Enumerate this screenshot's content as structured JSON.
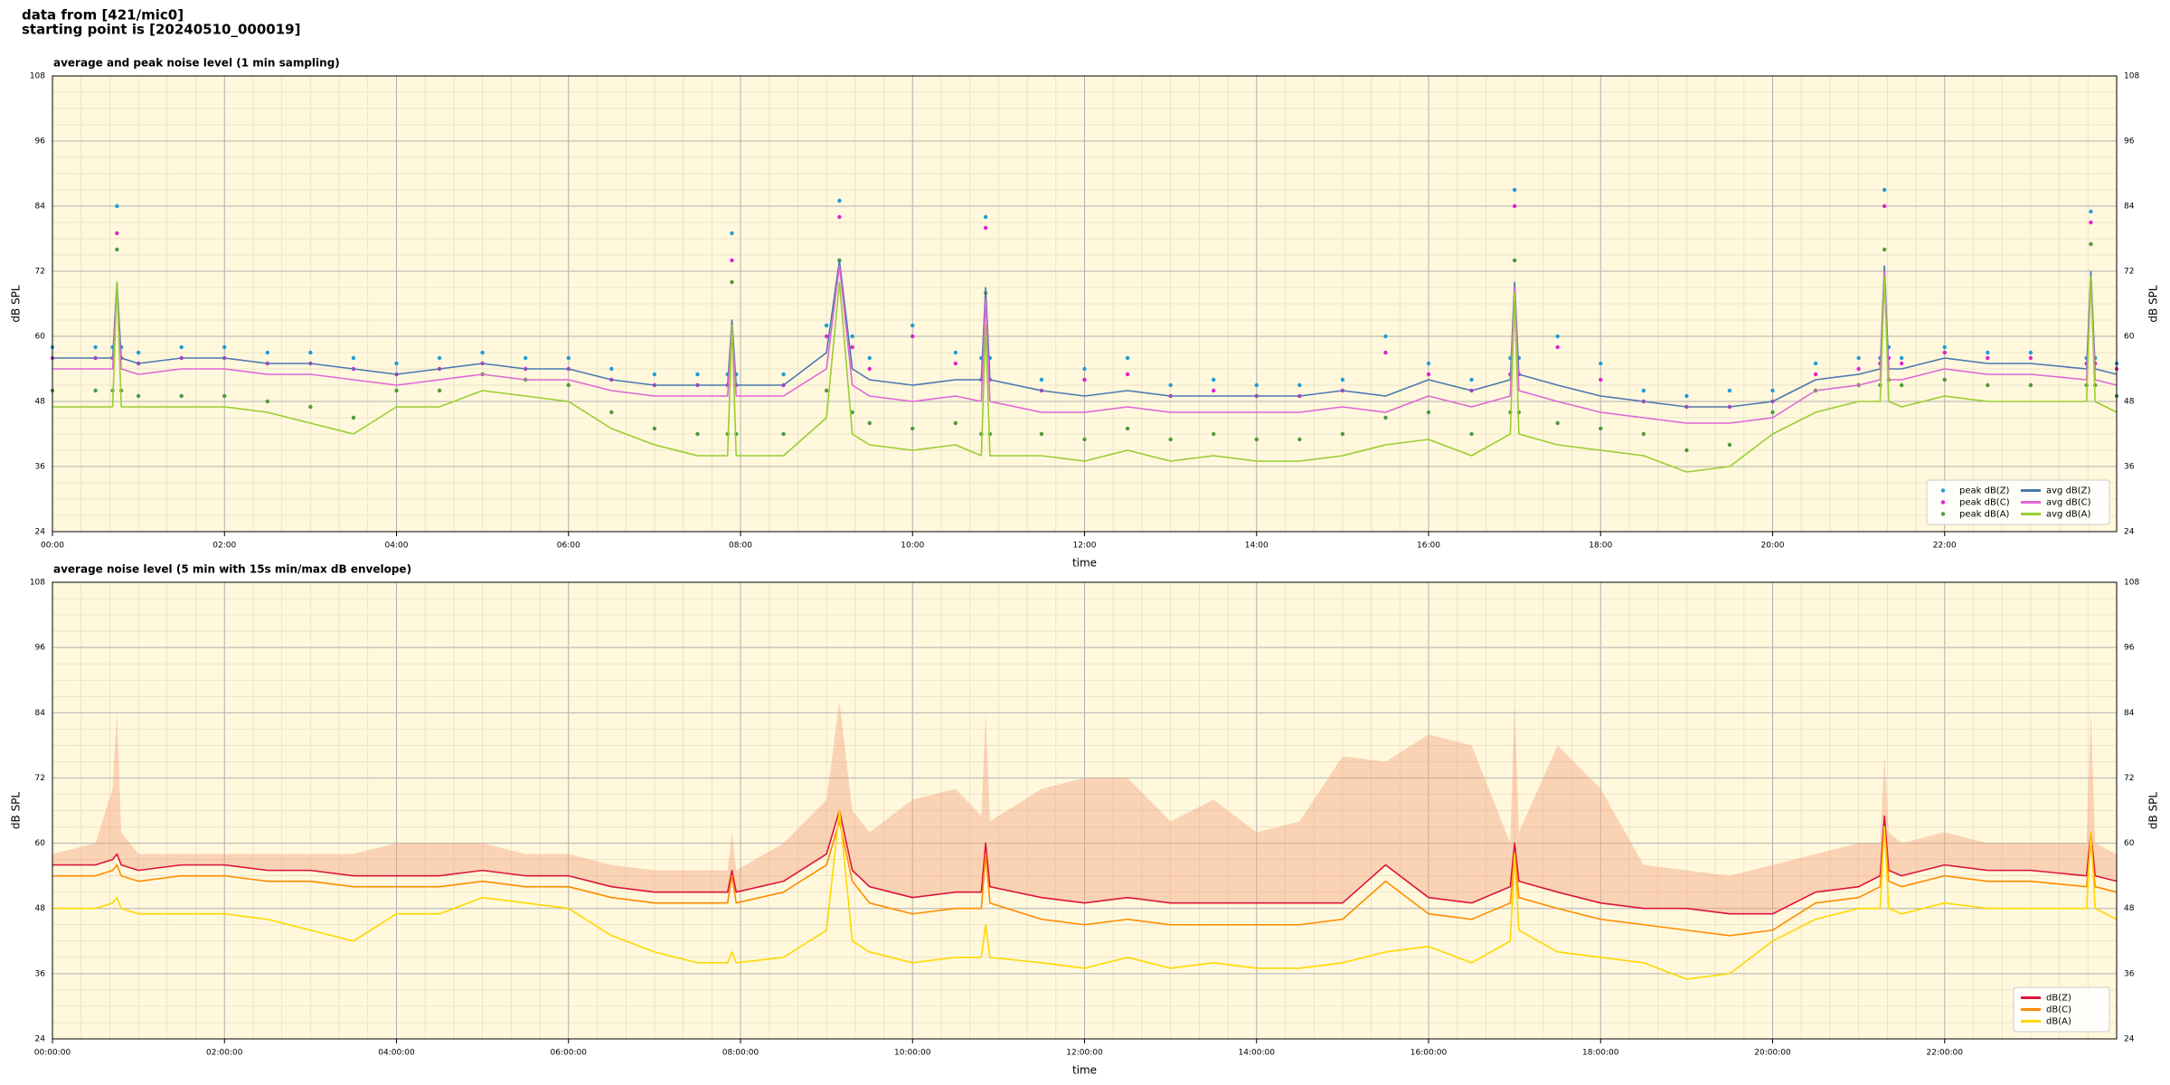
{
  "header": {
    "line1": "data from [421/mic0]",
    "line2": "starting point is [20240510_000019]"
  },
  "chart_data": [
    {
      "type": "line",
      "title": "average and peak noise level (1 min sampling)",
      "xlabel": "time",
      "ylabel": "dB SPL",
      "background": "#fff8dc",
      "grid": true,
      "legend": "lower right",
      "legend_columns": 2,
      "xlim": [
        0,
        24
      ],
      "ylim": [
        24,
        108
      ],
      "yticks": [
        24,
        36,
        48,
        60,
        72,
        84,
        96,
        108
      ],
      "xticks": [
        {
          "value": 0,
          "label": "00:00"
        },
        {
          "value": 2,
          "label": "02:00"
        },
        {
          "value": 4,
          "label": "04:00"
        },
        {
          "value": 6,
          "label": "06:00"
        },
        {
          "value": 8,
          "label": "08:00"
        },
        {
          "value": 10,
          "label": "10:00"
        },
        {
          "value": 12,
          "label": "12:00"
        },
        {
          "value": 14,
          "label": "14:00"
        },
        {
          "value": 16,
          "label": "16:00"
        },
        {
          "value": 18,
          "label": "18:00"
        },
        {
          "value": 20,
          "label": "20:00"
        },
        {
          "value": 22,
          "label": "22:00"
        }
      ],
      "x": [
        0,
        0.5,
        0.7,
        0.75,
        0.8,
        1,
        1.5,
        2,
        2.5,
        3,
        3.5,
        4,
        4.5,
        5,
        5.5,
        6,
        6.5,
        7,
        7.5,
        7.85,
        7.9,
        7.95,
        8.5,
        9,
        9.15,
        9.3,
        9.5,
        10,
        10.5,
        10.8,
        10.85,
        10.9,
        11.5,
        12,
        12.5,
        13,
        13.5,
        14,
        14.5,
        15,
        15.5,
        16,
        16.5,
        16.95,
        17,
        17.05,
        17.5,
        18,
        18.5,
        19,
        19.5,
        20,
        20.5,
        21,
        21.25,
        21.3,
        21.35,
        21.5,
        22,
        22.5,
        23,
        23.65,
        23.7,
        23.75,
        24
      ],
      "series": [
        {
          "name": "peak dB(Z)",
          "color": "#1f9bd8",
          "mode": "points",
          "values": [
            58,
            58,
            58,
            84,
            58,
            57,
            58,
            58,
            57,
            57,
            56,
            55,
            56,
            57,
            56,
            56,
            54,
            53,
            53,
            53,
            79,
            53,
            53,
            62,
            85,
            60,
            56,
            62,
            57,
            56,
            82,
            56,
            52,
            54,
            56,
            51,
            52,
            51,
            51,
            52,
            60,
            55,
            52,
            56,
            87,
            56,
            60,
            55,
            50,
            49,
            50,
            50,
            55,
            56,
            56,
            87,
            58,
            56,
            58,
            57,
            57,
            56,
            83,
            56,
            55
          ]
        },
        {
          "name": "peak dB(C)",
          "color": "#e020d0",
          "mode": "points",
          "values": [
            56,
            56,
            56,
            79,
            56,
            55,
            56,
            56,
            55,
            55,
            54,
            53,
            54,
            55,
            54,
            54,
            52,
            51,
            51,
            51,
            74,
            51,
            51,
            60,
            82,
            58,
            54,
            60,
            55,
            52,
            80,
            52,
            50,
            52,
            53,
            49,
            50,
            49,
            49,
            50,
            57,
            53,
            50,
            53,
            84,
            53,
            58,
            52,
            48,
            47,
            47,
            48,
            53,
            54,
            55,
            84,
            56,
            55,
            57,
            56,
            56,
            55,
            81,
            55,
            54
          ]
        },
        {
          "name": "peak dB(A)",
          "color": "#4c9a3a",
          "mode": "points",
          "values": [
            50,
            50,
            50,
            76,
            50,
            49,
            49,
            49,
            48,
            47,
            45,
            50,
            50,
            53,
            52,
            51,
            46,
            43,
            42,
            42,
            70,
            42,
            42,
            50,
            74,
            46,
            44,
            43,
            44,
            42,
            68,
            42,
            42,
            41,
            43,
            41,
            42,
            41,
            41,
            42,
            45,
            46,
            42,
            46,
            74,
            46,
            44,
            43,
            42,
            39,
            40,
            46,
            50,
            51,
            51,
            76,
            52,
            51,
            52,
            51,
            51,
            51,
            77,
            51,
            49
          ]
        },
        {
          "name": "avg dB(Z)",
          "color": "#4a78b0",
          "mode": "line",
          "values": [
            56,
            56,
            56,
            70,
            56,
            55,
            56,
            56,
            55,
            55,
            54,
            53,
            54,
            55,
            54,
            54,
            52,
            51,
            51,
            51,
            63,
            51,
            51,
            57,
            74,
            54,
            52,
            51,
            52,
            52,
            69,
            52,
            50,
            49,
            50,
            49,
            49,
            49,
            49,
            50,
            49,
            52,
            50,
            52,
            70,
            53,
            51,
            49,
            48,
            47,
            47,
            48,
            52,
            53,
            54,
            73,
            54,
            54,
            56,
            55,
            55,
            54,
            72,
            54,
            53
          ]
        },
        {
          "name": "avg dB(C)",
          "color": "#e066d6",
          "mode": "line",
          "values": [
            54,
            54,
            54,
            69,
            54,
            53,
            54,
            54,
            53,
            53,
            52,
            51,
            52,
            53,
            52,
            52,
            50,
            49,
            49,
            49,
            62,
            49,
            49,
            54,
            73,
            51,
            49,
            48,
            49,
            48,
            67,
            48,
            46,
            46,
            47,
            46,
            46,
            46,
            46,
            47,
            46,
            49,
            47,
            49,
            69,
            50,
            48,
            46,
            45,
            44,
            44,
            45,
            50,
            51,
            52,
            72,
            52,
            52,
            54,
            53,
            53,
            52,
            71,
            52,
            51
          ]
        },
        {
          "name": "avg dB(A)",
          "color": "#9acd32",
          "mode": "line",
          "values": [
            47,
            47,
            47,
            70,
            47,
            47,
            47,
            47,
            46,
            44,
            42,
            47,
            47,
            50,
            49,
            48,
            43,
            40,
            38,
            38,
            62,
            38,
            38,
            45,
            70,
            42,
            40,
            39,
            40,
            38,
            62,
            38,
            38,
            37,
            39,
            37,
            38,
            37,
            37,
            38,
            40,
            41,
            38,
            42,
            68,
            42,
            40,
            39,
            38,
            35,
            36,
            42,
            46,
            48,
            48,
            71,
            48,
            47,
            49,
            48,
            48,
            48,
            71,
            48,
            46
          ]
        }
      ]
    },
    {
      "type": "line",
      "title": "average noise level (5 min with 15s min/max dB envelope)",
      "xlabel": "time",
      "ylabel": "dB SPL",
      "background": "#fff8dc",
      "grid": true,
      "legend": "lower right",
      "legend_columns": 1,
      "xlim": [
        0,
        24
      ],
      "ylim": [
        24,
        108
      ],
      "yticks": [
        24,
        36,
        48,
        60,
        72,
        84,
        96,
        108
      ],
      "xticks": [
        {
          "value": 0,
          "label": "00:00:00"
        },
        {
          "value": 2,
          "label": "02:00:00"
        },
        {
          "value": 4,
          "label": "04:00:00"
        },
        {
          "value": 6,
          "label": "06:00:00"
        },
        {
          "value": 8,
          "label": "08:00:00"
        },
        {
          "value": 10,
          "label": "10:00:00"
        },
        {
          "value": 12,
          "label": "12:00:00"
        },
        {
          "value": 14,
          "label": "14:00:00"
        },
        {
          "value": 16,
          "label": "16:00:00"
        },
        {
          "value": 18,
          "label": "18:00:00"
        },
        {
          "value": 20,
          "label": "20:00:00"
        },
        {
          "value": 22,
          "label": "22:00:00"
        }
      ],
      "x": [
        0,
        0.5,
        0.7,
        0.75,
        0.8,
        1,
        1.5,
        2,
        2.5,
        3,
        3.5,
        4,
        4.5,
        5,
        5.5,
        6,
        6.5,
        7,
        7.5,
        7.85,
        7.9,
        7.95,
        8.5,
        9,
        9.15,
        9.3,
        9.5,
        10,
        10.5,
        10.8,
        10.85,
        10.9,
        11.5,
        12,
        12.5,
        13,
        13.5,
        14,
        14.5,
        15,
        15.5,
        16,
        16.5,
        16.95,
        17,
        17.05,
        17.5,
        18,
        18.5,
        19,
        19.5,
        20,
        20.5,
        21,
        21.25,
        21.3,
        21.35,
        21.5,
        22,
        22.5,
        23,
        23.65,
        23.7,
        23.75,
        24
      ],
      "envelope": {
        "color": "#f4a582",
        "upper": [
          58,
          60,
          70,
          84,
          62,
          58,
          58,
          58,
          58,
          58,
          58,
          60,
          60,
          60,
          58,
          58,
          56,
          55,
          55,
          55,
          62,
          55,
          60,
          68,
          86,
          66,
          62,
          68,
          70,
          65,
          84,
          64,
          70,
          72,
          72,
          64,
          68,
          62,
          64,
          76,
          75,
          80,
          78,
          60,
          86,
          62,
          78,
          70,
          56,
          55,
          54,
          56,
          58,
          60,
          60,
          76,
          62,
          60,
          62,
          60,
          60,
          60,
          84,
          60,
          58
        ]
      },
      "series": [
        {
          "name": "dB(Z)",
          "color": "#dc143c",
          "mode": "line",
          "values": [
            56,
            56,
            57,
            58,
            56,
            55,
            56,
            56,
            55,
            55,
            54,
            54,
            54,
            55,
            54,
            54,
            52,
            51,
            51,
            51,
            55,
            51,
            53,
            58,
            66,
            55,
            52,
            50,
            51,
            51,
            60,
            52,
            50,
            49,
            50,
            49,
            49,
            49,
            49,
            49,
            56,
            50,
            49,
            52,
            60,
            53,
            51,
            49,
            48,
            48,
            47,
            47,
            51,
            52,
            54,
            65,
            55,
            54,
            56,
            55,
            55,
            54,
            62,
            54,
            53
          ]
        },
        {
          "name": "dB(C)",
          "color": "#ff8c00",
          "mode": "line",
          "values": [
            54,
            54,
            55,
            56,
            54,
            53,
            54,
            54,
            53,
            53,
            52,
            52,
            52,
            53,
            52,
            52,
            50,
            49,
            49,
            49,
            54,
            49,
            51,
            56,
            64,
            53,
            49,
            47,
            48,
            48,
            58,
            49,
            46,
            45,
            46,
            45,
            45,
            45,
            45,
            46,
            53,
            47,
            46,
            49,
            58,
            50,
            48,
            46,
            45,
            44,
            43,
            44,
            49,
            50,
            52,
            63,
            53,
            52,
            54,
            53,
            53,
            52,
            60,
            52,
            51
          ]
        },
        {
          "name": "dB(A)",
          "color": "#ffd700",
          "mode": "line",
          "values": [
            48,
            48,
            49,
            50,
            48,
            47,
            47,
            47,
            46,
            44,
            42,
            47,
            47,
            50,
            49,
            48,
            43,
            40,
            38,
            38,
            40,
            38,
            39,
            44,
            66,
            42,
            40,
            38,
            39,
            39,
            45,
            39,
            38,
            37,
            39,
            37,
            38,
            37,
            37,
            38,
            40,
            41,
            38,
            42,
            58,
            44,
            40,
            39,
            38,
            35,
            36,
            42,
            46,
            48,
            48,
            63,
            48,
            47,
            49,
            48,
            48,
            48,
            62,
            48,
            46
          ]
        }
      ]
    }
  ]
}
